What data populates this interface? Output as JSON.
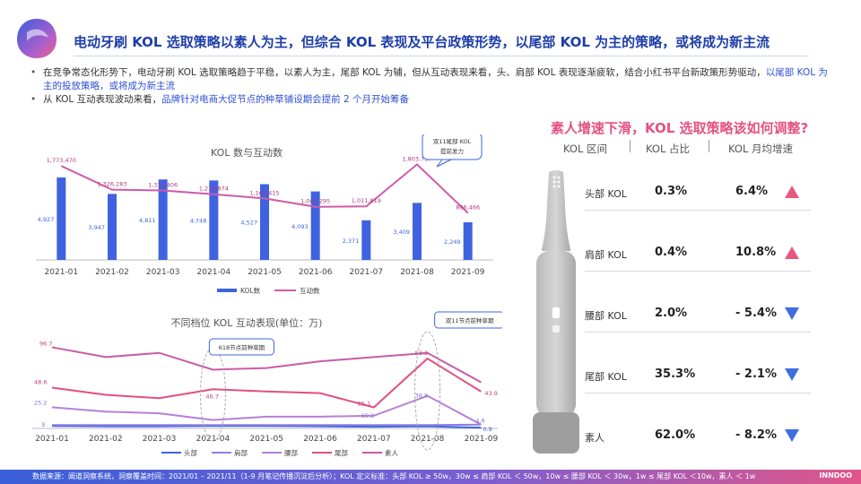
{
  "title": "电动牙刷 KOL 选取策略以素人为主，但综合 KOL 表现及平台政策形势，以尾部 KOL 为主的策略，或将成为新主流",
  "bullets": [
    {
      "text_a": "在竞争常态化形势下，电动牙刷 KOL 选取策略趋于平稳，以素人为主，尾部 KOL 为辅，但从互动表现来看，头、肩部 KOL 表现逐渐疲软，结合小红书平台新政策形势驱动，",
      "text_hl": "以尾部 KOL 为主的投放策略，或将成为新主流"
    },
    {
      "text_a": "从 KOL 互动表现波动来看，",
      "text_hl": "品牌针对电商大促节点的种草铺设期会提前 2 个月开始筹备"
    }
  ],
  "colors": {
    "blue": "#3f63e0",
    "pink": "#cf5aa8",
    "title": "#1e3ea8",
    "accent": "#e4537f",
    "up": "#e8587e",
    "down": "#3f6ee0"
  },
  "chart_data": [
    {
      "type": "bar+line",
      "title": "KOL 数与互动数",
      "categories": [
        "2021-01",
        "2021-02",
        "2021-03",
        "2021-04",
        "2021-05",
        "2021-06",
        "2021-07",
        "2021-08",
        "2021-09"
      ],
      "series": [
        {
          "name": "KOL数",
          "kind": "bar",
          "values": [
            4927,
            3947,
            4811,
            4748,
            4527,
            4093,
            2371,
            3409,
            2249
          ],
          "labels": [
            "4,927",
            "3,947",
            "4,811",
            "4,748",
            "4,527",
            "4,093",
            "2,371",
            "3,409",
            "2,249"
          ]
        },
        {
          "name": "互动数",
          "kind": "line",
          "values": [
            1773470,
            1326283,
            1312406,
            1239874,
            1160415,
            1003295,
            1011819,
            1803737,
            886466
          ],
          "labels": [
            "1,773,470",
            "1,326,283",
            "1,312,406",
            "1,239,874",
            "1,160,415",
            "1,003,295",
            "1,011,819",
            "1,803,737",
            "886,466"
          ]
        }
      ],
      "annotation": {
        "line1": "双11尾部 KOL",
        "line2": "提前发力"
      }
    },
    {
      "type": "line",
      "title": "不同档位 KOL 互动表现(单位：万)",
      "categories": [
        "2021-01",
        "2021-02",
        "2021-03",
        "2021-04",
        "2021-05",
        "2021-06",
        "2021-07",
        "2021-08",
        "2021-09"
      ],
      "ylim": [
        0,
        110
      ],
      "series": [
        {
          "name": "头部",
          "values": [
            3,
            2.5,
            2.5,
            3,
            3,
            2.5,
            2,
            2.5,
            0.9
          ]
        },
        {
          "name": "肩部",
          "values": [
            4,
            4,
            4,
            4,
            4,
            4,
            4,
            4,
            4.6
          ]
        },
        {
          "name": "腰部",
          "values": [
            25.2,
            20,
            18,
            10,
            14,
            14,
            15.2,
            38.8,
            4.6
          ]
        },
        {
          "name": "尾部",
          "values": [
            48.6,
            40,
            36,
            46.7,
            44,
            42,
            25.1,
            83.3,
            43.9
          ]
        },
        {
          "name": "素人",
          "values": [
            96.7,
            85,
            90,
            70,
            72,
            80,
            85,
            90,
            55
          ]
        }
      ],
      "data_labels": {
        "l1": "96.7",
        "l2": "48.6",
        "l3": "25.2",
        "l4": "3",
        "l5": "46.7",
        "l6": "15.2",
        "l7": "25.1",
        "l8": "83.3",
        "l9": "38.8",
        "l10": "43.9",
        "l11": "4.6",
        "l12": "0.9"
      },
      "annotations": {
        "a618": "618节点前种草期",
        "a1111": "双11节点前种草期"
      }
    }
  ],
  "right": {
    "title": "素人增速下滑，KOL 选取策略该如何调整?",
    "head": {
      "c1": "KOL 区间",
      "c2": "KOL 占比",
      "c3": "KOL 月均增速"
    },
    "rows": [
      {
        "name": "头部 KOL",
        "share": "0.3%",
        "growth": "6.4%",
        "trend": "up"
      },
      {
        "name": "肩部 KOL",
        "share": "0.4%",
        "growth": "10.8%",
        "trend": "up"
      },
      {
        "name": "腰部 KOL",
        "share": "2.0%",
        "growth": "- 5.4%",
        "trend": "down"
      },
      {
        "name": "尾部 KOL",
        "share": "35.3%",
        "growth": "- 2.1%",
        "trend": "down"
      },
      {
        "name": "素人",
        "share": "62.0%",
        "growth": "- 8.2%",
        "trend": "down"
      }
    ]
  },
  "footer": {
    "text": "数据来源：阐道洞察系统，洞察覆盖时间：2021/01 – 2021/11（1-9 月笔记传播沉淀后分析）；KOL 定义标准：头部 KOL ≥ 50w，30w ≤ 肩部 KOL ＜ 50w，10w ≤ 腰部 KOL ＜ 30w，1w ≤ 尾部 KOL ＜10w，素人 ＜ 1w",
    "brand": "INNDOO"
  }
}
